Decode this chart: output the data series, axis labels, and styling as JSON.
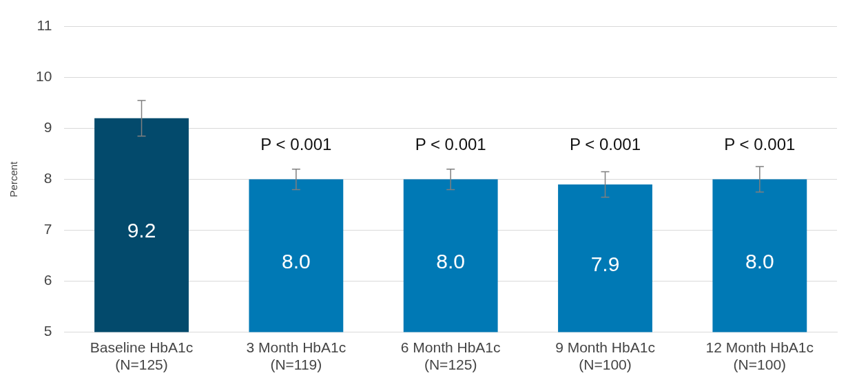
{
  "chart_data": {
    "type": "bar",
    "ylabel": "Percent",
    "categories": [
      "Baseline HbA1c\n(N=125)",
      "3 Month HbA1c\n(N=119)",
      "6 Month HbA1c\n(N=125)",
      "9 Month HbA1c\n(N=100)",
      "12 Month HbA1c\n(N=100)"
    ],
    "values": [
      9.2,
      8.0,
      8.0,
      7.9,
      8.0
    ],
    "colors": [
      "#034a6c",
      "#0079b5",
      "#0079b5",
      "#0079b5",
      "#0079b5"
    ],
    "value_labels": [
      "9.2",
      "8.0",
      "8.0",
      "7.9",
      "8.0"
    ],
    "errors": [
      [
        8.85,
        9.55
      ],
      [
        7.8,
        8.2
      ],
      [
        7.8,
        8.2
      ],
      [
        7.65,
        8.15
      ],
      [
        7.75,
        8.25
      ]
    ],
    "annotations": [
      "P < 0.001",
      "P < 0.001",
      "P < 0.001",
      "P < 0.001"
    ],
    "ylim": [
      5,
      11
    ],
    "yticks": [
      5,
      6,
      7,
      8,
      9,
      10,
      11
    ],
    "grid": "y",
    "legend": false
  }
}
